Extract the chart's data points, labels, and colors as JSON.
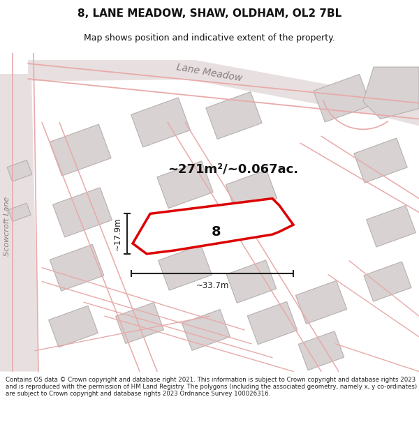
{
  "title": "8, LANE MEADOW, SHAW, OLDHAM, OL2 7BL",
  "subtitle": "Map shows position and indicative extent of the property.",
  "footer": "Contains OS data © Crown copyright and database right 2021. This information is subject to Crown copyright and database rights 2023 and is reproduced with the permission of HM Land Registry. The polygons (including the associated geometry, namely x, y co-ordinates) are subject to Crown copyright and database rights 2023 Ordnance Survey 100026316.",
  "area_label": "~271m²/~0.067ac.",
  "width_label": "~33.7m",
  "height_label": "~17.9m",
  "property_number": "8",
  "map_bg": "#f2eeee",
  "building_color": "#d8d2d2",
  "building_edge": "#b8b0b0",
  "road_line_color": "#e8aaaa",
  "road_band_color": "#e8e0e0",
  "property_fill": "white",
  "property_edge": "#dd0000",
  "dim_color": "#222222",
  "text_color": "#111111",
  "label_color": "#888080",
  "footer_color": "#222222",
  "title_fontsize": 11,
  "subtitle_fontsize": 9,
  "area_fontsize": 13,
  "property_num_fontsize": 14,
  "dim_fontsize": 8.5,
  "road_label_fontsize": 10,
  "footer_fontsize": 6.2
}
